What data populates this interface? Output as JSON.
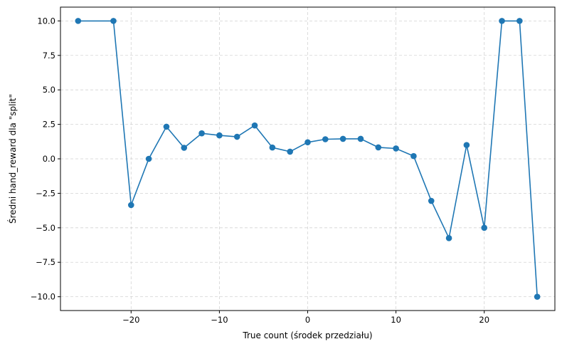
{
  "chart_data": {
    "type": "line",
    "title": "",
    "xlabel": "True count (środek przedziału)",
    "ylabel": "Średni hand_reward dla \"split\"",
    "xlim": [
      -28,
      28
    ],
    "ylim": [
      -11,
      11
    ],
    "x_ticks": [
      -20,
      -10,
      0,
      10,
      20
    ],
    "x_tick_labels": [
      "−20",
      "−10",
      "0",
      "10",
      "20"
    ],
    "y_ticks": [
      10.0,
      7.5,
      5.0,
      2.5,
      0.0,
      -2.5,
      -5.0,
      -7.5,
      -10.0
    ],
    "y_tick_labels": [
      "10.0",
      "7.5",
      "5.0",
      "2.5",
      "0.0",
      "−2.5",
      "−5.0",
      "−7.5",
      "−10.0"
    ],
    "grid": true,
    "color": "#1f77b4",
    "series": [
      {
        "x": [
          -26,
          -22,
          -20,
          -18,
          -16,
          -14,
          -12,
          -10,
          -8,
          -6,
          -4,
          -2,
          0,
          2,
          4,
          6,
          8,
          10,
          12,
          14,
          16,
          18,
          20,
          22,
          24,
          26
        ],
        "y": [
          10.0,
          10.0,
          -3.35,
          0.0,
          2.33,
          0.8,
          1.85,
          1.7,
          1.6,
          2.42,
          0.82,
          0.52,
          1.2,
          1.42,
          1.45,
          1.45,
          0.83,
          0.75,
          0.2,
          -3.05,
          -5.75,
          1.0,
          -5.0,
          10.0,
          10.0,
          -10.0
        ]
      }
    ]
  }
}
